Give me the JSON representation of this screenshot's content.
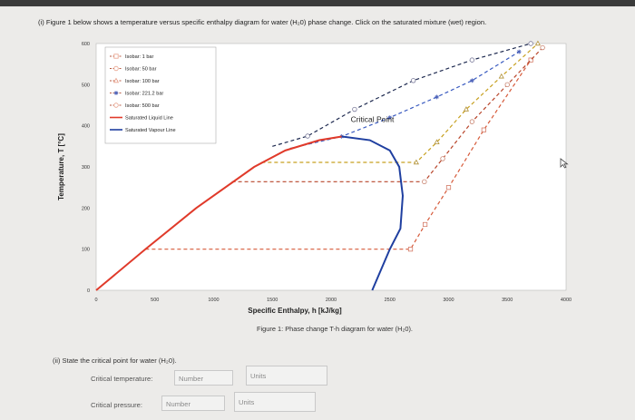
{
  "question": {
    "text": "(i)   Figure 1 below shows a temperature versus specific enthalpy diagram for water (H₂0) phase change. Click on the saturated mixture (wet) region."
  },
  "chart_data": {
    "type": "line",
    "xlabel": "Specific Enthalpy,  h  [kJ/kg]",
    "ylabel": "Temperature,  T [°C]",
    "xlim": [
      0,
      4000
    ],
    "ylim": [
      0,
      600
    ],
    "xticks": [
      "0",
      "500",
      "1000",
      "1500",
      "2000",
      "2500",
      "3000",
      "3500",
      "4000"
    ],
    "yticks": [
      "0",
      "100",
      "200",
      "300",
      "400",
      "500",
      "600"
    ],
    "annotation": "Critical Point",
    "critical_point": {
      "h": 2090,
      "T": 374
    },
    "legend": [
      {
        "label": "Isobar: 1 bar",
        "color": "#e8a08a",
        "style": "dashed",
        "marker": "square"
      },
      {
        "label": "Isobar: 50 bar",
        "color": "#e8a08a",
        "style": "dashed",
        "marker": "circle"
      },
      {
        "label": "Isobar: 100 bar",
        "color": "#e8a08a",
        "style": "dashed",
        "marker": "triangle"
      },
      {
        "label": "Isobar: 221.2 bar",
        "color": "#4a60b8",
        "style": "dashed",
        "marker": "star"
      },
      {
        "label": "Isobar: 500 bar",
        "color": "#e8a08a",
        "style": "dashed",
        "marker": "circle"
      },
      {
        "label": "Saturated Liquid Line",
        "color": "#e03a2a",
        "style": "solid"
      },
      {
        "label": "Saturated Vapour Line",
        "color": "#1f3fa0",
        "style": "solid"
      }
    ],
    "series": [
      {
        "name": "Saturated Liquid Line",
        "x": [
          0,
          420,
          852,
          1345,
          1610,
          1900,
          2090
        ],
        "y": [
          0,
          100,
          200,
          300,
          340,
          365,
          374
        ]
      },
      {
        "name": "Saturated Vapour Line",
        "x": [
          2090,
          2330,
          2500,
          2580,
          2610,
          2590,
          2500,
          2350
        ],
        "y": [
          374,
          365,
          340,
          300,
          230,
          150,
          100,
          0
        ]
      },
      {
        "name": "Isobar: 1 bar",
        "x": [
          420,
          2676,
          2800,
          3000,
          3300,
          3700
        ],
        "y": [
          100,
          100,
          160,
          250,
          390,
          560
        ]
      },
      {
        "name": "Isobar: 50 bar",
        "x": [
          1155,
          2794,
          2950,
          3200,
          3500,
          3800
        ],
        "y": [
          264,
          264,
          320,
          410,
          500,
          590
        ]
      },
      {
        "name": "Isobar: 100 bar",
        "x": [
          1408,
          2725,
          2900,
          3150,
          3450,
          3760
        ],
        "y": [
          311,
          311,
          360,
          440,
          520,
          600
        ]
      },
      {
        "name": "Isobar: 221.2 bar",
        "x": [
          1650,
          2090,
          2500,
          2900,
          3200,
          3600
        ],
        "y": [
          345,
          374,
          420,
          470,
          510,
          580
        ]
      },
      {
        "name": "Isobar: 500 bar",
        "x": [
          1500,
          1800,
          2200,
          2700,
          3200,
          3700
        ],
        "y": [
          350,
          375,
          440,
          510,
          560,
          600
        ]
      }
    ]
  },
  "figure": {
    "caption": "Figure 1: Phase change T-h diagram for water (H₂0)."
  },
  "part2": {
    "question": "(ii)  State the critical point for water (H₂0).",
    "temp_label": "Critical temperature:",
    "temp_value_placeholder": "Number",
    "temp_units_placeholder": "Units",
    "pressure_label": "Critical pressure:",
    "pressure_value_placeholder": "Number",
    "pressure_units_placeholder": "Units"
  }
}
